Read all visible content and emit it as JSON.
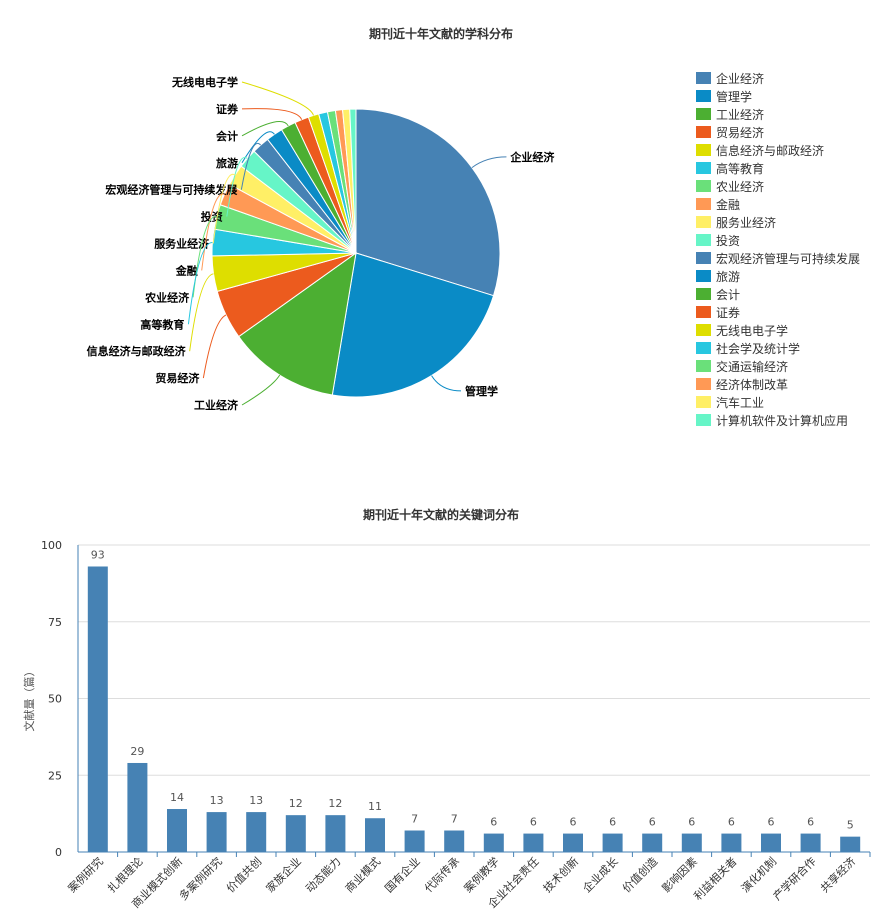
{
  "chart_data": [
    {
      "type": "pie",
      "title": "期刊近十年文献的学科分布",
      "legend_position": "right",
      "slices": [
        {
          "name": "企业经济",
          "value": 30.0,
          "color": "#4682B4"
        },
        {
          "name": "管理学",
          "value": 23.0,
          "color": "#0A8BC6"
        },
        {
          "name": "工业经济",
          "value": 12.6,
          "color": "#4CAF32"
        },
        {
          "name": "贸易经济",
          "value": 5.6,
          "color": "#EC5B1E"
        },
        {
          "name": "信息经济与邮政经济",
          "value": 4.0,
          "color": "#DEDE00"
        },
        {
          "name": "高等教育",
          "value": 3.0,
          "color": "#27C7E0"
        },
        {
          "name": "农业经济",
          "value": 2.8,
          "color": "#6AE07A"
        },
        {
          "name": "金融",
          "value": 2.5,
          "color": "#FF9955"
        },
        {
          "name": "服务业经济",
          "value": 2.4,
          "color": "#FFEF66"
        },
        {
          "name": "投资",
          "value": 2.2,
          "color": "#66F5C7"
        },
        {
          "name": "宏观经济管理与可持续发展",
          "value": 2.0,
          "color": "#4682B4"
        },
        {
          "name": "旅游",
          "value": 1.9,
          "color": "#0A8BC6"
        },
        {
          "name": "会计",
          "value": 1.7,
          "color": "#4CAF32"
        },
        {
          "name": "证券",
          "value": 1.6,
          "color": "#EC5B1E"
        },
        {
          "name": "无线电电子学",
          "value": 1.2,
          "color": "#DEDE00"
        },
        {
          "name": "社会学及统计学",
          "value": 1.0,
          "color": "#27C7E0"
        },
        {
          "name": "交通运输经济",
          "value": 0.9,
          "color": "#6AE07A"
        },
        {
          "name": "经济体制改革",
          "value": 0.8,
          "color": "#FF9955"
        },
        {
          "name": "汽车工业",
          "value": 0.8,
          "color": "#FFEF66"
        },
        {
          "name": "计算机软件及计算机应用",
          "value": 0.7,
          "color": "#66F5C7"
        }
      ],
      "labeled_slices": [
        "企业经济",
        "管理学",
        "工业经济",
        "贸易经济",
        "信息经济与邮政经济",
        "高等教育",
        "农业经济",
        "金融",
        "服务业经济",
        "投资",
        "宏观经济管理与可持续发展",
        "旅游",
        "会计",
        "证券",
        "无线电电子学"
      ]
    },
    {
      "type": "bar",
      "title": "期刊近十年文献的关键词分布",
      "ylabel": "文献量（篇）",
      "ylim": [
        0,
        100
      ],
      "yticks": [
        0,
        25,
        50,
        75,
        100
      ],
      "bar_color": "#4682B4",
      "grid": true,
      "categories": [
        "案例研究",
        "扎根理论",
        "商业模式创新",
        "多案例研究",
        "价值共创",
        "家族企业",
        "动态能力",
        "商业模式",
        "国有企业",
        "代际传承",
        "案例教学",
        "企业社会责任",
        "技术创新",
        "企业成长",
        "价值创造",
        "影响因素",
        "利益相关者",
        "演化机制",
        "产学研合作",
        "共享经济"
      ],
      "values": [
        93,
        29,
        14,
        13,
        13,
        12,
        12,
        11,
        7,
        7,
        6,
        6,
        6,
        6,
        6,
        6,
        6,
        6,
        6,
        5
      ]
    }
  ]
}
